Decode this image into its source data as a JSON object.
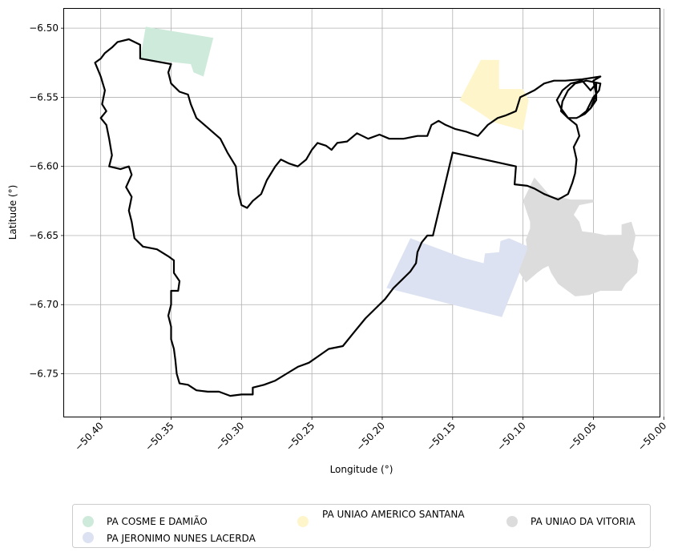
{
  "axes": {
    "xlabel": "Longitude (°)",
    "ylabel": "Latitude (°)",
    "xlim": [
      -50.426,
      -50.003
    ],
    "ylim": [
      -6.781,
      -6.486
    ],
    "x_ticks": [
      {
        "value": -50.4,
        "label": "−50.40"
      },
      {
        "value": -50.35,
        "label": "−50.35"
      },
      {
        "value": -50.3,
        "label": "−50.30"
      },
      {
        "value": -50.25,
        "label": "−50.25"
      },
      {
        "value": -50.2,
        "label": "−50.20"
      },
      {
        "value": -50.15,
        "label": "−50.15"
      },
      {
        "value": -50.1,
        "label": "−50.10"
      },
      {
        "value": -50.05,
        "label": "−50.05"
      },
      {
        "value": -50.0,
        "label": "−50.00"
      }
    ],
    "y_ticks": [
      {
        "value": -6.5,
        "label": "−6.50"
      },
      {
        "value": -6.55,
        "label": "−6.55"
      },
      {
        "value": -6.6,
        "label": "−6.60"
      },
      {
        "value": -6.65,
        "label": "−6.65"
      },
      {
        "value": -6.7,
        "label": "−6.70"
      },
      {
        "value": -6.75,
        "label": "−6.75"
      }
    ],
    "grid": true
  },
  "settlements": [
    {
      "name": "PA COSME E DAMIÃO",
      "color": "#cdeadb",
      "polygon": [
        [
          -50.368,
          -6.499
        ],
        [
          -50.32,
          -6.507
        ],
        [
          -50.327,
          -6.535
        ],
        [
          -50.334,
          -6.532
        ],
        [
          -50.336,
          -6.526
        ],
        [
          -50.372,
          -6.522
        ]
      ]
    },
    {
      "name": "PA JERONIMO NUNES LACERDA",
      "color": "#dce2f1",
      "polygon": [
        [
          -50.18,
          -6.652
        ],
        [
          -50.143,
          -6.666
        ],
        [
          -50.128,
          -6.67
        ],
        [
          -50.127,
          -6.663
        ],
        [
          -50.117,
          -6.662
        ],
        [
          -50.116,
          -6.654
        ],
        [
          -50.11,
          -6.652
        ],
        [
          -50.094,
          -6.659
        ],
        [
          -50.097,
          -6.663
        ],
        [
          -50.115,
          -6.709
        ],
        [
          -50.197,
          -6.688
        ]
      ]
    },
    {
      "name": "PA UNIAO AMERICO SANTANA",
      "color": "#fff5cb",
      "polygon": [
        [
          -50.13,
          -6.523
        ],
        [
          -50.117,
          -6.523
        ],
        [
          -50.117,
          -6.544
        ],
        [
          -50.1,
          -6.544
        ],
        [
          -50.096,
          -6.552
        ],
        [
          -50.1,
          -6.574
        ],
        [
          -50.121,
          -6.568
        ],
        [
          -50.131,
          -6.561
        ],
        [
          -50.145,
          -6.552
        ]
      ]
    },
    {
      "name": "PA UNIAO DA VITORIA",
      "color": "#dcdcdc",
      "polygon": [
        [
          -50.092,
          -6.608
        ],
        [
          -50.08,
          -6.622
        ],
        [
          -50.074,
          -6.622
        ],
        [
          -50.066,
          -6.624
        ],
        [
          -50.05,
          -6.624
        ],
        [
          -50.05,
          -6.626
        ],
        [
          -50.06,
          -6.628
        ],
        [
          -50.064,
          -6.635
        ],
        [
          -50.06,
          -6.64
        ],
        [
          -50.058,
          -6.647
        ],
        [
          -50.05,
          -6.648
        ],
        [
          -50.04,
          -6.65
        ],
        [
          -50.03,
          -6.65
        ],
        [
          -50.03,
          -6.642
        ],
        [
          -50.023,
          -6.64
        ],
        [
          -50.02,
          -6.65
        ],
        [
          -50.022,
          -6.66
        ],
        [
          -50.018,
          -6.668
        ],
        [
          -50.019,
          -6.677
        ],
        [
          -50.027,
          -6.685
        ],
        [
          -50.03,
          -6.69
        ],
        [
          -50.045,
          -6.69
        ],
        [
          -50.053,
          -6.693
        ],
        [
          -50.063,
          -6.694
        ],
        [
          -50.075,
          -6.685
        ],
        [
          -50.08,
          -6.677
        ],
        [
          -50.082,
          -6.672
        ],
        [
          -50.086,
          -6.674
        ],
        [
          -50.09,
          -6.677
        ],
        [
          -50.098,
          -6.684
        ],
        [
          -50.103,
          -6.676
        ],
        [
          -50.1,
          -6.668
        ],
        [
          -50.097,
          -6.66
        ],
        [
          -50.098,
          -6.653
        ],
        [
          -50.095,
          -6.645
        ],
        [
          -50.095,
          -6.64
        ],
        [
          -50.1,
          -6.625
        ]
      ]
    }
  ],
  "boundary": [
    [
      -50.372,
      -6.522
    ],
    [
      -50.372,
      -6.512
    ],
    [
      -50.38,
      -6.508
    ],
    [
      -50.388,
      -6.51
    ],
    [
      -50.392,
      -6.514
    ],
    [
      -50.397,
      -6.518
    ],
    [
      -50.4,
      -6.522
    ],
    [
      -50.404,
      -6.525
    ],
    [
      -50.402,
      -6.53
    ],
    [
      -50.4,
      -6.535
    ],
    [
      -50.397,
      -6.545
    ],
    [
      -50.399,
      -6.555
    ],
    [
      -50.396,
      -6.56
    ],
    [
      -50.4,
      -6.565
    ],
    [
      -50.396,
      -6.57
    ],
    [
      -50.394,
      -6.58
    ],
    [
      -50.392,
      -6.592
    ],
    [
      -50.394,
      -6.6
    ],
    [
      -50.386,
      -6.602
    ],
    [
      -50.38,
      -6.6
    ],
    [
      -50.378,
      -6.606
    ],
    [
      -50.382,
      -6.615
    ],
    [
      -50.378,
      -6.622
    ],
    [
      -50.38,
      -6.632
    ],
    [
      -50.378,
      -6.64
    ],
    [
      -50.376,
      -6.652
    ],
    [
      -50.37,
      -6.658
    ],
    [
      -50.36,
      -6.66
    ],
    [
      -50.352,
      -6.665
    ],
    [
      -50.348,
      -6.668
    ],
    [
      -50.348,
      -6.677
    ],
    [
      -50.344,
      -6.683
    ],
    [
      -50.345,
      -6.69
    ],
    [
      -50.35,
      -6.69
    ],
    [
      -50.35,
      -6.7
    ],
    [
      -50.352,
      -6.708
    ],
    [
      -50.35,
      -6.716
    ],
    [
      -50.35,
      -6.725
    ],
    [
      -50.348,
      -6.732
    ],
    [
      -50.347,
      -6.74
    ],
    [
      -50.346,
      -6.75
    ],
    [
      -50.344,
      -6.757
    ],
    [
      -50.338,
      -6.758
    ],
    [
      -50.332,
      -6.762
    ],
    [
      -50.324,
      -6.763
    ],
    [
      -50.316,
      -6.763
    ],
    [
      -50.308,
      -6.766
    ],
    [
      -50.3,
      -6.765
    ],
    [
      -50.292,
      -6.765
    ],
    [
      -50.292,
      -6.76
    ],
    [
      -50.284,
      -6.758
    ],
    [
      -50.276,
      -6.755
    ],
    [
      -50.268,
      -6.75
    ],
    [
      -50.26,
      -6.745
    ],
    [
      -50.252,
      -6.742
    ],
    [
      -50.245,
      -6.737
    ],
    [
      -50.238,
      -6.732
    ],
    [
      -50.228,
      -6.73
    ],
    [
      -50.22,
      -6.72
    ],
    [
      -50.212,
      -6.71
    ],
    [
      -50.205,
      -6.703
    ],
    [
      -50.198,
      -6.696
    ],
    [
      -50.192,
      -6.688
    ],
    [
      -50.186,
      -6.682
    ],
    [
      -50.18,
      -6.676
    ],
    [
      -50.176,
      -6.67
    ],
    [
      -50.175,
      -6.662
    ],
    [
      -50.172,
      -6.655
    ],
    [
      -50.168,
      -6.65
    ],
    [
      -50.164,
      -6.65
    ],
    [
      -50.15,
      -6.59
    ],
    [
      -50.105,
      -6.6
    ],
    [
      -50.106,
      -6.613
    ],
    [
      -50.097,
      -6.614
    ],
    [
      -50.092,
      -6.616
    ],
    [
      -50.085,
      -6.62
    ],
    [
      -50.075,
      -6.624
    ],
    [
      -50.068,
      -6.62
    ],
    [
      -50.065,
      -6.612
    ],
    [
      -50.063,
      -6.605
    ],
    [
      -50.062,
      -6.595
    ],
    [
      -50.064,
      -6.586
    ],
    [
      -50.06,
      -6.578
    ],
    [
      -50.062,
      -6.57
    ],
    [
      -50.068,
      -6.565
    ],
    [
      -50.073,
      -6.558
    ],
    [
      -50.076,
      -6.552
    ],
    [
      -50.072,
      -6.545
    ],
    [
      -50.066,
      -6.54
    ],
    [
      -50.058,
      -6.538
    ],
    [
      -50.052,
      -6.545
    ],
    [
      -50.048,
      -6.54
    ],
    [
      -50.048,
      -6.552
    ],
    [
      -50.052,
      -6.558
    ],
    [
      -50.056,
      -6.562
    ],
    [
      -50.062,
      -6.565
    ],
    [
      -50.068,
      -6.565
    ],
    [
      -50.073,
      -6.56
    ],
    [
      -50.072,
      -6.553
    ],
    [
      -50.068,
      -6.545
    ],
    [
      -50.063,
      -6.54
    ],
    [
      -50.055,
      -6.538
    ],
    [
      -50.045,
      -6.54
    ],
    [
      -50.046,
      -6.545
    ],
    [
      -50.05,
      -6.55
    ],
    [
      -50.055,
      -6.56
    ],
    [
      -50.06,
      -6.564
    ],
    [
      -50.052,
      -6.558
    ],
    [
      -50.048,
      -6.548
    ],
    [
      -50.05,
      -6.538
    ],
    [
      -50.045,
      -6.535
    ],
    [
      -50.058,
      -6.537
    ],
    [
      -50.07,
      -6.538
    ],
    [
      -50.078,
      -6.538
    ],
    [
      -50.085,
      -6.54
    ],
    [
      -50.092,
      -6.545
    ],
    [
      -50.098,
      -6.548
    ],
    [
      -50.102,
      -6.55
    ],
    [
      -50.105,
      -6.56
    ],
    [
      -50.112,
      -6.563
    ],
    [
      -50.118,
      -6.565
    ],
    [
      -50.125,
      -6.57
    ],
    [
      -50.132,
      -6.578
    ],
    [
      -50.14,
      -6.575
    ],
    [
      -50.148,
      -6.573
    ],
    [
      -50.155,
      -6.57
    ],
    [
      -50.16,
      -6.567
    ],
    [
      -50.165,
      -6.57
    ],
    [
      -50.168,
      -6.578
    ],
    [
      -50.175,
      -6.578
    ],
    [
      -50.185,
      -6.58
    ],
    [
      -50.195,
      -6.58
    ],
    [
      -50.202,
      -6.577
    ],
    [
      -50.21,
      -6.58
    ],
    [
      -50.218,
      -6.576
    ],
    [
      -50.225,
      -6.582
    ],
    [
      -50.232,
      -6.583
    ],
    [
      -50.236,
      -6.588
    ],
    [
      -50.24,
      -6.585
    ],
    [
      -50.246,
      -6.583
    ],
    [
      -50.25,
      -6.588
    ],
    [
      -50.254,
      -6.595
    ],
    [
      -50.26,
      -6.6
    ],
    [
      -50.266,
      -6.598
    ],
    [
      -50.272,
      -6.595
    ],
    [
      -50.276,
      -6.6
    ],
    [
      -50.282,
      -6.61
    ],
    [
      -50.286,
      -6.62
    ],
    [
      -50.292,
      -6.625
    ],
    [
      -50.296,
      -6.63
    ],
    [
      -50.3,
      -6.628
    ],
    [
      -50.302,
      -6.62
    ],
    [
      -50.304,
      -6.6
    ],
    [
      -50.31,
      -6.59
    ],
    [
      -50.315,
      -6.58
    ],
    [
      -50.324,
      -6.572
    ],
    [
      -50.332,
      -6.565
    ],
    [
      -50.336,
      -6.555
    ],
    [
      -50.338,
      -6.548
    ],
    [
      -50.344,
      -6.546
    ],
    [
      -50.35,
      -6.54
    ],
    [
      -50.352,
      -6.532
    ],
    [
      -50.35,
      -6.526
    ],
    [
      -50.372,
      -6.522
    ]
  ],
  "legend": {
    "placement": "lower-center"
  }
}
